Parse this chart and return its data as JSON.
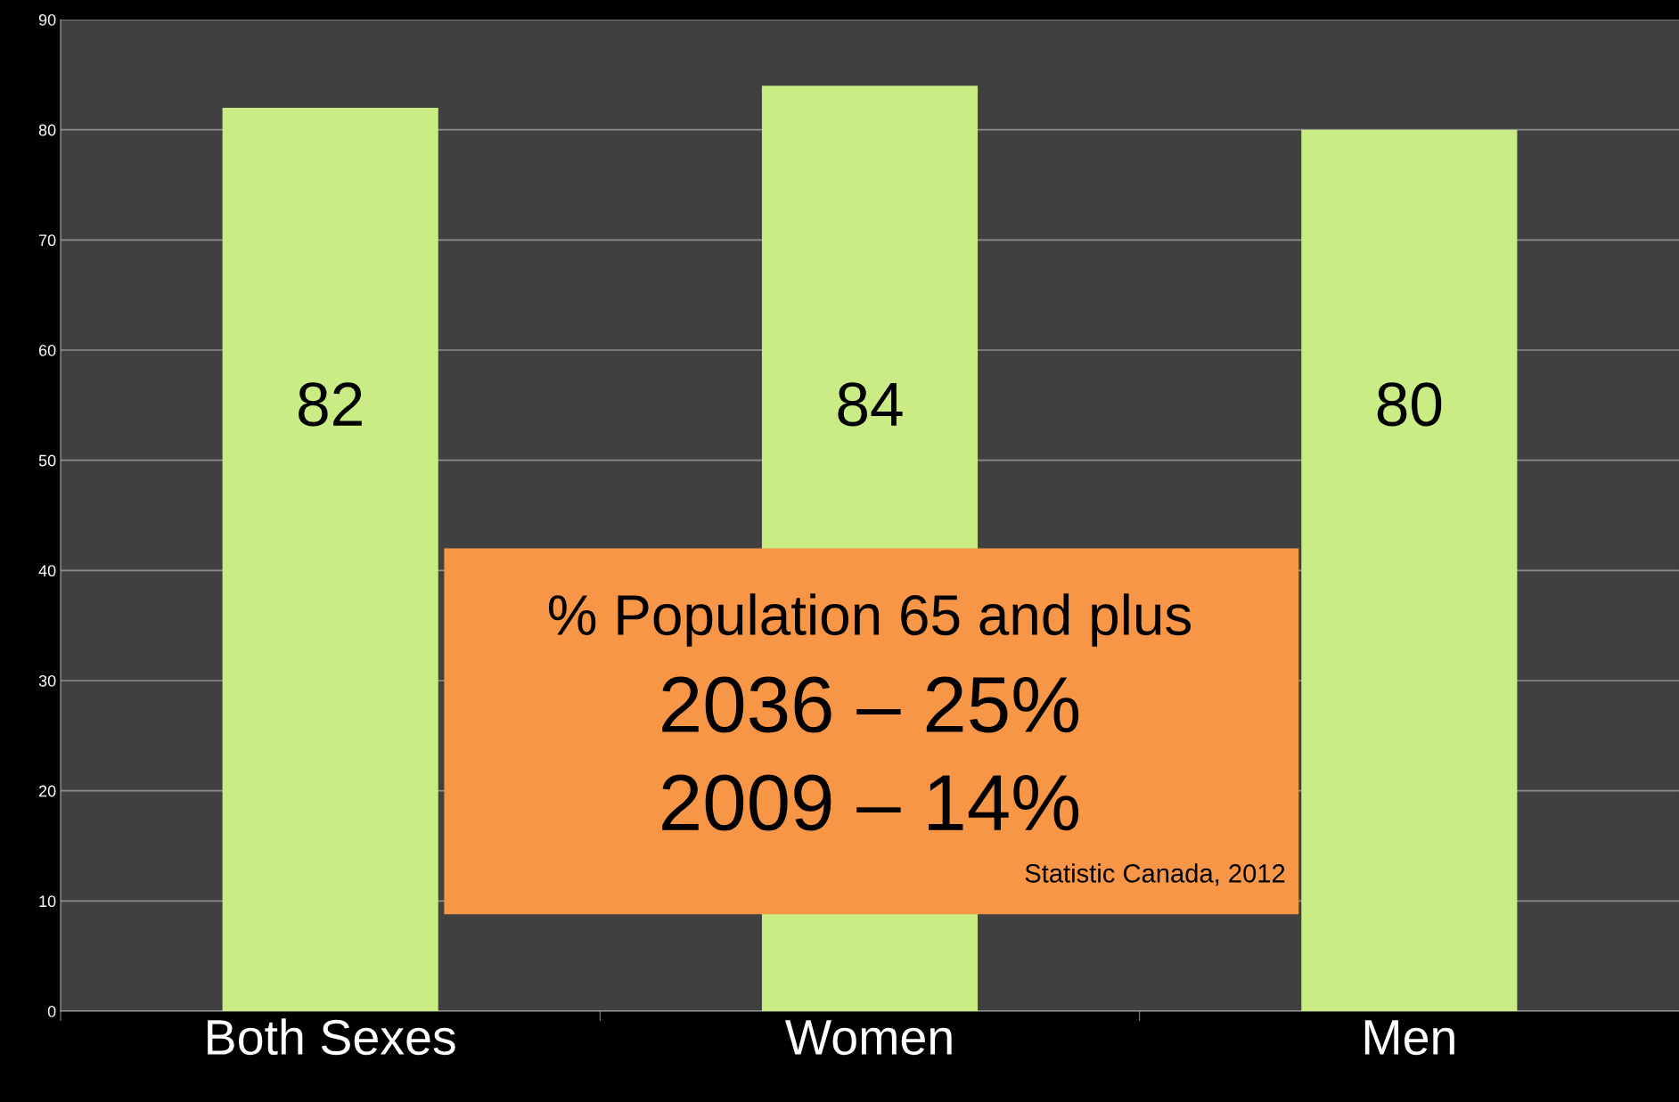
{
  "chart_data": {
    "type": "bar",
    "categories": [
      "Both Sexes",
      "Women",
      "Men"
    ],
    "values": [
      82,
      84,
      80
    ],
    "color": "#c9ec85",
    "ylim": [
      0,
      90
    ],
    "yticks": [
      0,
      10,
      20,
      30,
      40,
      50,
      60,
      70,
      80,
      90
    ],
    "grid": "y",
    "data_labels": true,
    "annotations": [
      "% Population 65 and plus",
      "2036 – 25%",
      "2009 – 14%",
      "Statistic Canada, 2012"
    ]
  }
}
